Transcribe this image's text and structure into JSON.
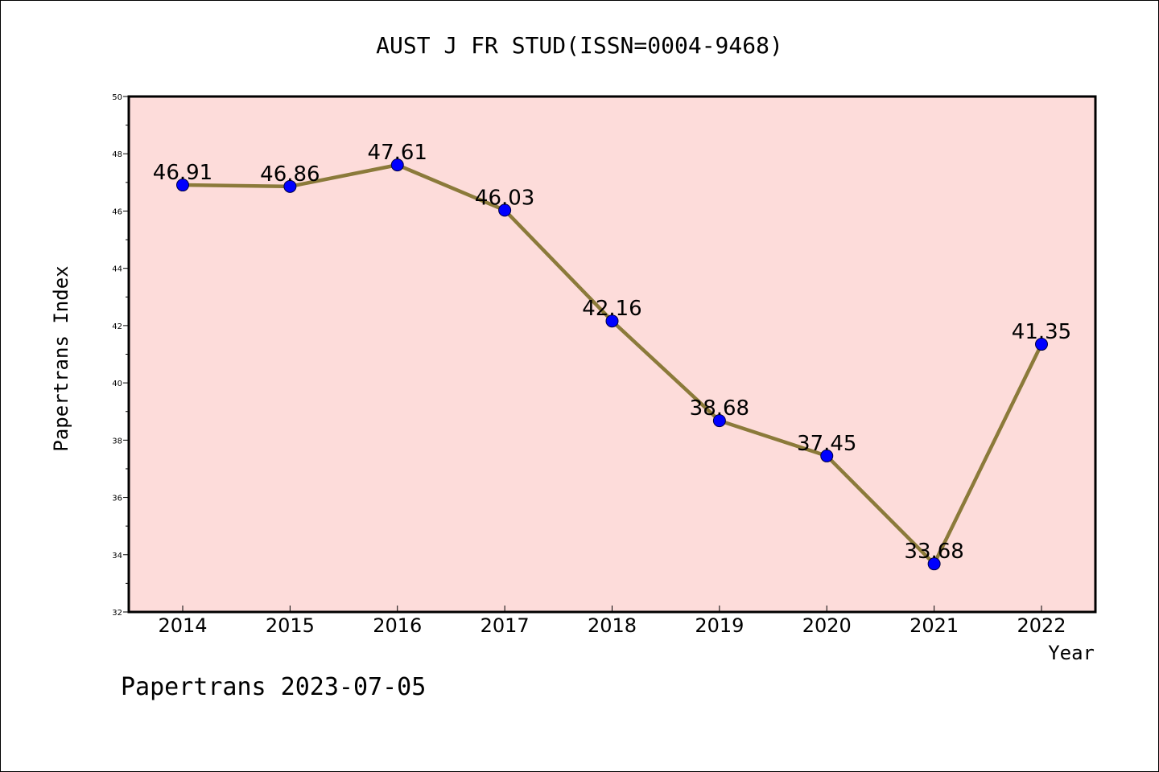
{
  "chart_data": {
    "type": "line",
    "title": "AUST J FR STUD(ISSN=0004-9468)",
    "xlabel": "Year",
    "ylabel": "Papertrans Index",
    "footer": "Papertrans 2023-07-05",
    "categories": [
      "2014",
      "2015",
      "2016",
      "2017",
      "2018",
      "2019",
      "2020",
      "2021",
      "2022"
    ],
    "values": [
      46.91,
      46.86,
      47.61,
      46.03,
      42.16,
      38.68,
      37.45,
      33.68,
      41.35
    ],
    "data_labels": [
      "46.91",
      "46.86",
      "47.61",
      "46.03",
      "42.16",
      "38.68",
      "37.45",
      "33.68",
      "41.35"
    ],
    "ylim": [
      32,
      50
    ],
    "yticks": [
      "32",
      "34",
      "36",
      "38",
      "40",
      "42",
      "44",
      "46",
      "48",
      "50"
    ],
    "grid": false,
    "legend": "none",
    "colors": {
      "plot_background": "#fddcda",
      "line": "#8b7a3a",
      "marker": "#0000ff",
      "axis": "#000000"
    }
  }
}
